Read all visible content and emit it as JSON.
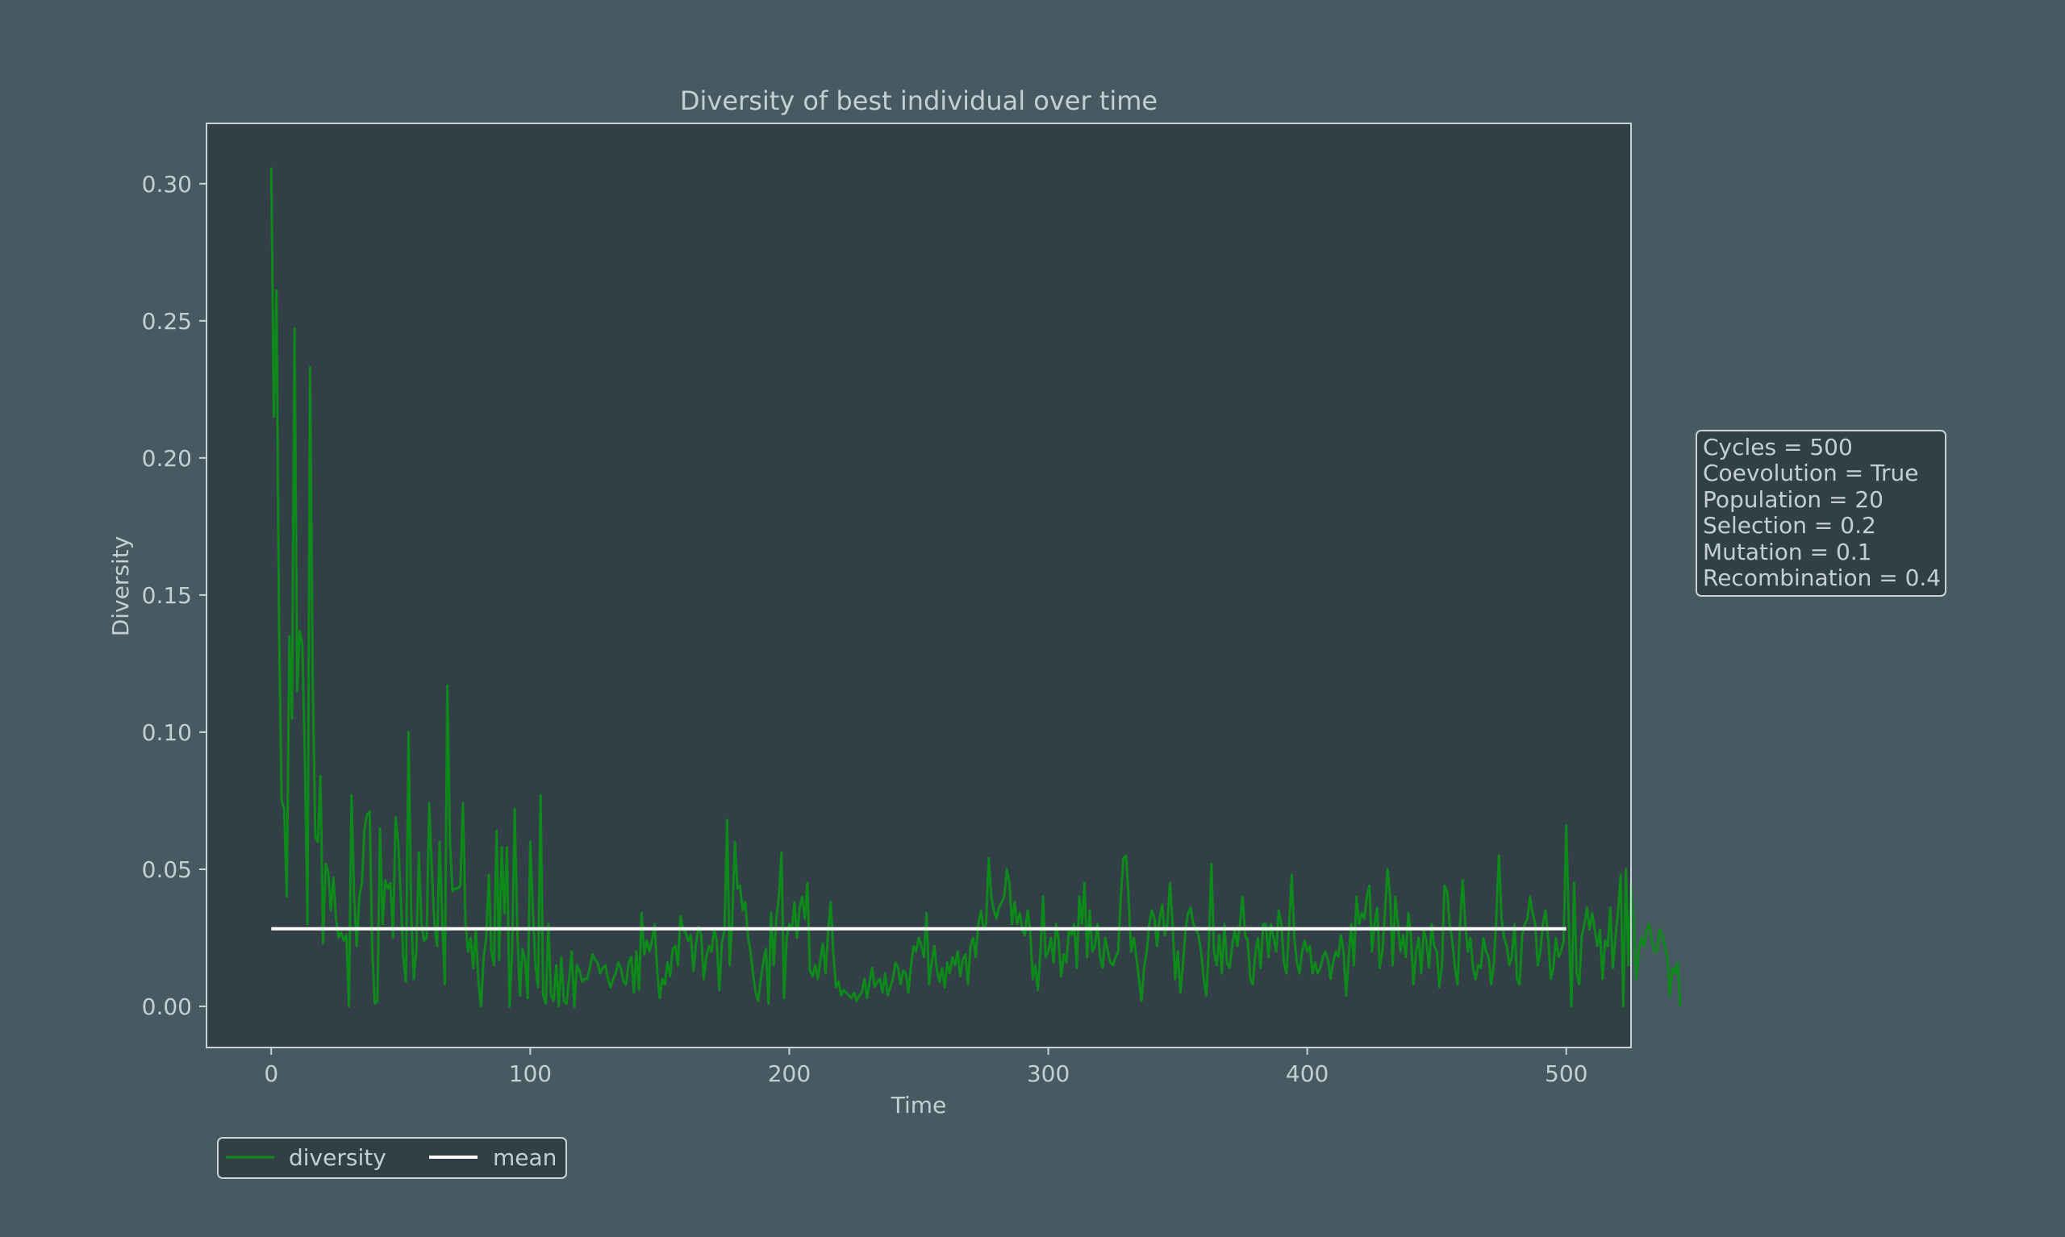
{
  "colors": {
    "figure_background": "#475a62",
    "axes_background": "#323f47",
    "text": "#c3cfd4",
    "spine": "#c9d3d7",
    "diversity_line": "#0d8a1a",
    "mean_line": "#ffffff"
  },
  "chart_data": {
    "type": "line",
    "title": "Diversity of best individual over time",
    "xlabel": "Time",
    "ylabel": "Diversity",
    "xlim": [
      -25,
      525
    ],
    "ylim": [
      -0.015,
      0.322
    ],
    "xticks": [
      0,
      100,
      200,
      300,
      400,
      500
    ],
    "xtick_labels": [
      "0",
      "100",
      "200",
      "300",
      "400",
      "500"
    ],
    "yticks": [
      0.0,
      0.05,
      0.1,
      0.15,
      0.2,
      0.25,
      0.3
    ],
    "ytick_labels": [
      "0.00",
      "0.05",
      "0.10",
      "0.15",
      "0.20",
      "0.25",
      "0.30"
    ],
    "grid": false,
    "legend": {
      "placement": "bottom-left, below axes",
      "entries": [
        "diversity",
        "mean"
      ]
    },
    "series": [
      {
        "name": "diversity",
        "color": "#0d8a1a",
        "x_start": 0,
        "x_step": 1,
        "values": [
          0.306,
          0.215,
          0.261,
          0.14,
          0.075,
          0.072,
          0.04,
          0.135,
          0.105,
          0.247,
          0.115,
          0.137,
          0.132,
          0.09,
          0.03,
          0.233,
          0.12,
          0.062,
          0.06,
          0.084,
          0.023,
          0.052,
          0.049,
          0.035,
          0.047,
          0.032,
          0.025,
          0.027,
          0.024,
          0.026,
          0.0,
          0.077,
          0.04,
          0.022,
          0.04,
          0.045,
          0.065,
          0.07,
          0.071,
          0.02,
          0.001,
          0.002,
          0.065,
          0.03,
          0.046,
          0.043,
          0.045,
          0.025,
          0.069,
          0.06,
          0.04,
          0.018,
          0.009,
          0.1,
          0.035,
          0.01,
          0.02,
          0.056,
          0.03,
          0.024,
          0.025,
          0.074,
          0.05,
          0.03,
          0.022,
          0.06,
          0.032,
          0.008,
          0.117,
          0.06,
          0.042,
          0.043,
          0.043,
          0.044,
          0.074,
          0.03,
          0.02,
          0.025,
          0.014,
          0.028,
          0.009,
          0.0,
          0.018,
          0.025,
          0.048,
          0.02,
          0.015,
          0.064,
          0.017,
          0.058,
          0.034,
          0.058,
          0.0,
          0.02,
          0.072,
          0.028,
          0.004,
          0.021,
          0.017,
          0.003,
          0.06,
          0.035,
          0.015,
          0.007,
          0.077,
          0.004,
          0.001,
          0.03,
          0.004,
          0.002,
          0.015,
          0.0,
          0.018,
          0.002,
          0.001,
          0.01,
          0.02,
          0.0,
          0.015,
          0.013,
          0.009,
          0.01,
          0.01,
          0.014,
          0.019,
          0.017,
          0.016,
          0.012,
          0.014,
          0.015,
          0.01,
          0.007,
          0.01,
          0.012,
          0.016,
          0.014,
          0.009,
          0.008,
          0.016,
          0.018,
          0.005,
          0.02,
          0.006,
          0.034,
          0.019,
          0.024,
          0.02,
          0.024,
          0.03,
          0.013,
          0.003,
          0.01,
          0.008,
          0.016,
          0.011,
          0.021,
          0.022,
          0.015,
          0.033,
          0.028,
          0.027,
          0.024,
          0.026,
          0.013,
          0.023,
          0.029,
          0.026,
          0.01,
          0.018,
          0.022,
          0.02,
          0.028,
          0.024,
          0.006,
          0.023,
          0.028,
          0.068,
          0.015,
          0.032,
          0.06,
          0.043,
          0.044,
          0.035,
          0.038,
          0.026,
          0.02,
          0.012,
          0.005,
          0.002,
          0.01,
          0.016,
          0.021,
          0.001,
          0.034,
          0.015,
          0.032,
          0.04,
          0.056,
          0.003,
          0.025,
          0.03,
          0.028,
          0.038,
          0.025,
          0.036,
          0.04,
          0.032,
          0.045,
          0.013,
          0.011,
          0.015,
          0.01,
          0.017,
          0.023,
          0.012,
          0.027,
          0.038,
          0.02,
          0.007,
          0.009,
          0.004,
          0.006,
          0.005,
          0.004,
          0.003,
          0.005,
          0.002,
          0.004,
          0.005,
          0.01,
          0.003,
          0.009,
          0.014,
          0.007,
          0.009,
          0.01,
          0.005,
          0.012,
          0.004,
          0.007,
          0.01,
          0.016,
          0.014,
          0.008,
          0.013,
          0.012,
          0.005,
          0.015,
          0.022,
          0.02,
          0.025,
          0.022,
          0.018,
          0.034,
          0.008,
          0.016,
          0.022,
          0.013,
          0.009,
          0.014,
          0.007,
          0.016,
          0.012,
          0.018,
          0.015,
          0.02,
          0.011,
          0.017,
          0.019,
          0.008,
          0.022,
          0.025,
          0.018,
          0.03,
          0.035,
          0.028,
          0.03,
          0.054,
          0.04,
          0.035,
          0.032,
          0.036,
          0.038,
          0.04,
          0.05,
          0.045,
          0.03,
          0.038,
          0.03,
          0.034,
          0.028,
          0.026,
          0.035,
          0.028,
          0.01,
          0.015,
          0.006,
          0.02,
          0.04,
          0.018,
          0.02,
          0.025,
          0.016,
          0.03,
          0.024,
          0.011,
          0.019,
          0.016,
          0.028,
          0.026,
          0.03,
          0.014,
          0.04,
          0.03,
          0.045,
          0.018,
          0.035,
          0.02,
          0.022,
          0.03,
          0.018,
          0.014,
          0.025,
          0.02,
          0.016,
          0.015,
          0.018,
          0.02,
          0.04,
          0.054,
          0.055,
          0.04,
          0.02,
          0.025,
          0.018,
          0.01,
          0.002,
          0.014,
          0.02,
          0.03,
          0.035,
          0.032,
          0.022,
          0.032,
          0.037,
          0.026,
          0.03,
          0.045,
          0.03,
          0.01,
          0.02,
          0.005,
          0.015,
          0.028,
          0.034,
          0.036,
          0.03,
          0.028,
          0.026,
          0.02,
          0.01,
          0.004,
          0.022,
          0.052,
          0.02,
          0.015,
          0.026,
          0.012,
          0.03,
          0.016,
          0.014,
          0.022,
          0.028,
          0.022,
          0.03,
          0.04,
          0.026,
          0.024,
          0.01,
          0.008,
          0.02,
          0.025,
          0.014,
          0.03,
          0.03,
          0.018,
          0.03,
          0.025,
          0.02,
          0.035,
          0.03,
          0.016,
          0.012,
          0.03,
          0.048,
          0.025,
          0.016,
          0.012,
          0.02,
          0.024,
          0.02,
          0.022,
          0.012,
          0.016,
          0.012,
          0.014,
          0.018,
          0.02,
          0.017,
          0.01,
          0.016,
          0.02,
          0.018,
          0.026,
          0.02,
          0.004,
          0.018,
          0.03,
          0.015,
          0.04,
          0.03,
          0.034,
          0.032,
          0.04,
          0.044,
          0.02,
          0.03,
          0.036,
          0.014,
          0.02,
          0.035,
          0.05,
          0.04,
          0.015,
          0.04,
          0.03,
          0.02,
          0.026,
          0.018,
          0.034,
          0.026,
          0.008,
          0.02,
          0.025,
          0.012,
          0.028,
          0.024,
          0.014,
          0.03,
          0.022,
          0.02,
          0.007,
          0.015,
          0.044,
          0.042,
          0.03,
          0.024,
          0.014,
          0.008,
          0.03,
          0.046,
          0.03,
          0.02,
          0.025,
          0.014,
          0.01,
          0.015,
          0.014,
          0.025,
          0.02,
          0.018,
          0.008,
          0.015,
          0.032,
          0.055,
          0.032,
          0.025,
          0.022,
          0.015,
          0.018,
          0.03,
          0.01,
          0.008,
          0.026,
          0.03,
          0.032,
          0.04,
          0.034,
          0.03,
          0.015,
          0.02,
          0.03,
          0.035,
          0.025,
          0.01,
          0.014,
          0.025,
          0.018,
          0.02,
          0.024,
          0.066,
          0.03,
          0.0,
          0.045,
          0.012,
          0.008,
          0.026,
          0.03,
          0.036,
          0.028,
          0.034,
          0.028,
          0.022,
          0.028,
          0.01,
          0.024,
          0.022,
          0.036,
          0.014,
          0.025,
          0.035,
          0.048,
          0.0,
          0.05,
          0.015,
          0.045,
          0.03,
          0.01,
          0.02,
          0.025,
          0.022,
          0.028,
          0.03,
          0.024,
          0.02,
          0.02,
          0.028,
          0.026,
          0.022,
          0.018,
          0.004,
          0.014,
          0.012,
          0.016,
          0.0
        ]
      },
      {
        "name": "mean",
        "color": "#ffffff",
        "x": [
          0,
          500
        ],
        "values": [
          0.0283,
          0.0283
        ]
      }
    ]
  },
  "info_box": {
    "lines": [
      "Cycles = 500",
      "Coevolution = True",
      "Population = 20",
      "Selection = 0.2",
      "Mutation = 0.1",
      "Recombination = 0.4"
    ]
  }
}
